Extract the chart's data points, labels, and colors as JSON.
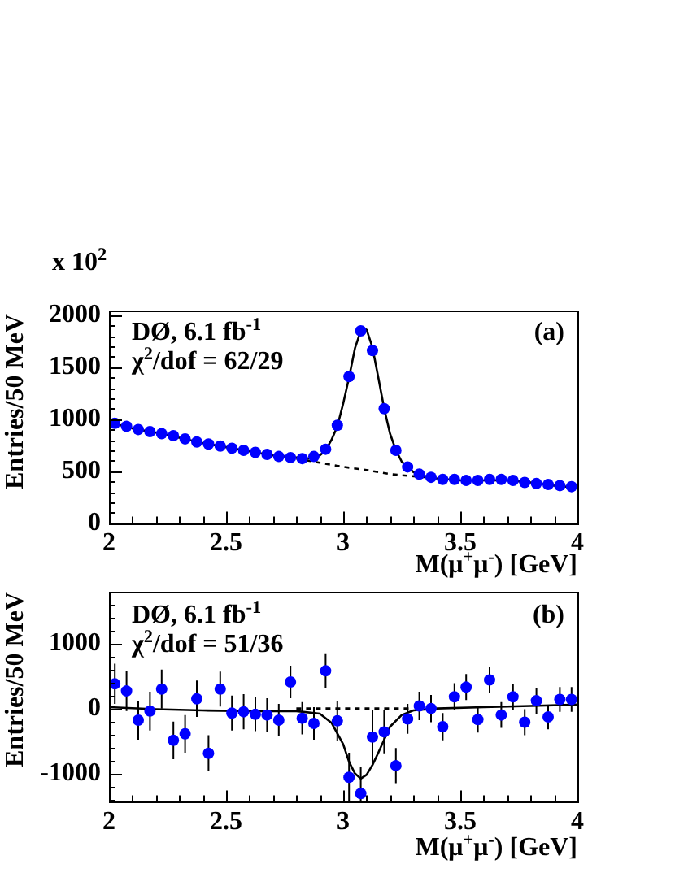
{
  "chart_data": [
    {
      "type": "scatter",
      "xlabel": "M(μ$^{+}$μ$^{-}$) [GeV]",
      "ylabel": "Entries/50 MeV",
      "annotations": [
        "DØ, 6.1 fb$^{-1}$",
        "χ$^{2}$/dof = 62/29",
        "(a)",
        "x 10$^{2}$"
      ],
      "xlim": [
        2,
        4
      ],
      "xticks": [
        2,
        {
          "value": 2.1,
          "label": null
        },
        {
          "value": 2.2,
          "label": null
        },
        {
          "value": 2.3,
          "label": null
        },
        {
          "value": 2.4,
          "label": null
        },
        2.5,
        {
          "value": 2.6,
          "label": null
        },
        {
          "value": 2.7,
          "label": null
        },
        {
          "value": 2.8,
          "label": null
        },
        {
          "value": 2.9,
          "label": null
        },
        3,
        {
          "value": 3.1,
          "label": null
        },
        {
          "value": 3.2,
          "label": null
        },
        {
          "value": 3.3,
          "label": null
        },
        {
          "value": 3.4,
          "label": null
        },
        3.5,
        {
          "value": 3.6,
          "label": null
        },
        {
          "value": 3.7,
          "label": null
        },
        {
          "value": 3.8,
          "label": null
        },
        {
          "value": 3.9,
          "label": null
        },
        4
      ],
      "ylim": [
        0,
        2050
      ],
      "yticks": [
        0,
        {
          "value": 100,
          "label": null
        },
        {
          "value": 200,
          "label": null
        },
        {
          "value": 300,
          "label": null
        },
        {
          "value": 400,
          "label": null
        },
        500,
        {
          "value": 600,
          "label": null
        },
        {
          "value": 700,
          "label": null
        },
        {
          "value": 800,
          "label": null
        },
        {
          "value": 900,
          "label": null
        },
        1000,
        {
          "value": 1100,
          "label": null
        },
        {
          "value": 1200,
          "label": null
        },
        {
          "value": 1300,
          "label": null
        },
        {
          "value": 1400,
          "label": null
        },
        1500,
        {
          "value": 1600,
          "label": null
        },
        {
          "value": 1700,
          "label": null
        },
        {
          "value": 1800,
          "label": null
        },
        {
          "value": 1900,
          "label": null
        },
        2000
      ],
      "series": [
        {
          "type": "scatter",
          "color": "#0000ff",
          "marker": "circle",
          "x": [
            2.025,
            2.075,
            2.125,
            2.175,
            2.225,
            2.275,
            2.325,
            2.375,
            2.425,
            2.475,
            2.525,
            2.575,
            2.625,
            2.675,
            2.725,
            2.775,
            2.825,
            2.875,
            2.925,
            2.975,
            3.025,
            3.075,
            3.125,
            3.175,
            3.225,
            3.275,
            3.325,
            3.375,
            3.425,
            3.475,
            3.525,
            3.575,
            3.625,
            3.675,
            3.725,
            3.775,
            3.825,
            3.875,
            3.925,
            3.975
          ],
          "values": [
            960,
            930,
            900,
            880,
            860,
            840,
            810,
            780,
            760,
            740,
            720,
            700,
            680,
            660,
            640,
            630,
            620,
            640,
            710,
            940,
            1410,
            1850,
            1660,
            1100,
            700,
            540,
            470,
            440,
            420,
            420,
            410,
            410,
            420,
            420,
            410,
            390,
            380,
            370,
            360,
            350
          ]
        },
        {
          "type": "line",
          "color": "#000000",
          "line_style": "solid",
          "x": [
            2.0,
            2.1,
            2.2,
            2.3,
            2.4,
            2.5,
            2.6,
            2.7,
            2.8,
            2.85,
            2.9,
            2.925,
            2.95,
            2.975,
            3.0,
            3.025,
            3.05,
            3.075,
            3.09,
            3.1,
            3.125,
            3.15,
            3.175,
            3.2,
            3.225,
            3.25,
            3.3,
            3.35,
            3.4,
            3.5,
            3.6,
            3.7,
            3.8,
            3.9,
            4.0
          ],
          "values": [
            970,
            910,
            870,
            820,
            770,
            730,
            690,
            650,
            630,
            620,
            650,
            700,
            800,
            930,
            1150,
            1400,
            1680,
            1850,
            1870,
            1860,
            1690,
            1400,
            1100,
            860,
            700,
            590,
            490,
            450,
            430,
            410,
            410,
            410,
            390,
            360,
            340
          ]
        },
        {
          "type": "line",
          "color": "#000000",
          "line_style": "dashed",
          "x": [
            2.8,
            2.9,
            3.0,
            3.1,
            3.2,
            3.3,
            3.4
          ],
          "values": [
            620,
            580,
            540,
            510,
            470,
            450,
            430
          ]
        }
      ]
    },
    {
      "type": "scatter",
      "xlabel": "M(μ$^{+}$μ$^{-}$) [GeV]",
      "ylabel": "Entries/50 MeV",
      "annotations": [
        "DØ, 6.1 fb$^{-1}$",
        "χ$^{2}$/dof = 51/36",
        "(b)"
      ],
      "xlim": [
        2,
        4
      ],
      "xticks": [
        2,
        {
          "value": 2.1,
          "label": null
        },
        {
          "value": 2.2,
          "label": null
        },
        {
          "value": 2.3,
          "label": null
        },
        {
          "value": 2.4,
          "label": null
        },
        2.5,
        {
          "value": 2.6,
          "label": null
        },
        {
          "value": 2.7,
          "label": null
        },
        {
          "value": 2.8,
          "label": null
        },
        {
          "value": 2.9,
          "label": null
        },
        3,
        {
          "value": 3.1,
          "label": null
        },
        {
          "value": 3.2,
          "label": null
        },
        {
          "value": 3.3,
          "label": null
        },
        {
          "value": 3.4,
          "label": null
        },
        3.5,
        {
          "value": 3.6,
          "label": null
        },
        {
          "value": 3.7,
          "label": null
        },
        {
          "value": 3.8,
          "label": null
        },
        {
          "value": 3.9,
          "label": null
        },
        4
      ],
      "ylim": [
        -1440,
        1800
      ],
      "yticks": [
        {
          "value": -1400,
          "label": null
        },
        {
          "value": -1200,
          "label": null
        },
        -1000,
        {
          "value": -800,
          "label": null
        },
        {
          "value": -600,
          "label": null
        },
        {
          "value": -400,
          "label": null
        },
        {
          "value": -200,
          "label": null
        },
        0,
        {
          "value": 200,
          "label": null
        },
        {
          "value": 400,
          "label": null
        },
        {
          "value": 600,
          "label": null
        },
        {
          "value": 800,
          "label": null
        },
        1000,
        {
          "value": 1200,
          "label": null
        },
        {
          "value": 1400,
          "label": null
        },
        {
          "value": 1600,
          "label": null
        }
      ],
      "series": [
        {
          "type": "scatter",
          "color": "#0000ff",
          "marker": "circle",
          "x": [
            2.025,
            2.075,
            2.125,
            2.175,
            2.225,
            2.275,
            2.325,
            2.375,
            2.425,
            2.475,
            2.525,
            2.575,
            2.625,
            2.675,
            2.725,
            2.775,
            2.825,
            2.875,
            2.925,
            2.975,
            3.025,
            3.075,
            3.125,
            3.175,
            3.225,
            3.275,
            3.325,
            3.375,
            3.425,
            3.475,
            3.525,
            3.575,
            3.625,
            3.675,
            3.725,
            3.775,
            3.825,
            3.875,
            3.925,
            3.975
          ],
          "values": [
            380,
            270,
            -180,
            -40,
            300,
            -490,
            -390,
            150,
            -690,
            300,
            -70,
            -50,
            -90,
            -100,
            -180,
            410,
            -150,
            -230,
            580,
            -190,
            -1060,
            -1310,
            -440,
            -360,
            -880,
            -160,
            40,
            0,
            -280,
            180,
            330,
            -170,
            440,
            -100,
            180,
            -210,
            120,
            -130,
            140,
            140
          ],
          "errors": [
            310,
            310,
            300,
            300,
            300,
            290,
            290,
            280,
            280,
            270,
            270,
            270,
            260,
            260,
            250,
            250,
            250,
            250,
            270,
            310,
            380,
            [
              -1440,
              -900
            ],
            410,
            330,
            270,
            230,
            220,
            210,
            210,
            210,
            200,
            200,
            200,
            200,
            200,
            200,
            200,
            190,
            190,
            190
          ]
        },
        {
          "type": "line",
          "color": "#000000",
          "line_style": "solid",
          "x": [
            2.0,
            2.2,
            2.4,
            2.6,
            2.8,
            2.9,
            2.95,
            3.0,
            3.025,
            3.05,
            3.075,
            3.1,
            3.125,
            3.15,
            3.2,
            3.25,
            3.3,
            3.4,
            3.6,
            3.8,
            4.0
          ],
          "values": [
            20,
            -10,
            -30,
            -40,
            -40,
            -80,
            -220,
            -550,
            -820,
            -1000,
            -1080,
            -1020,
            -870,
            -680,
            -280,
            -100,
            -30,
            0,
            20,
            40,
            60
          ]
        },
        {
          "type": "line",
          "color": "#000000",
          "line_style": "dashed",
          "x": [
            2.8,
            3.3
          ],
          "values": [
            0,
            0
          ]
        }
      ]
    }
  ]
}
